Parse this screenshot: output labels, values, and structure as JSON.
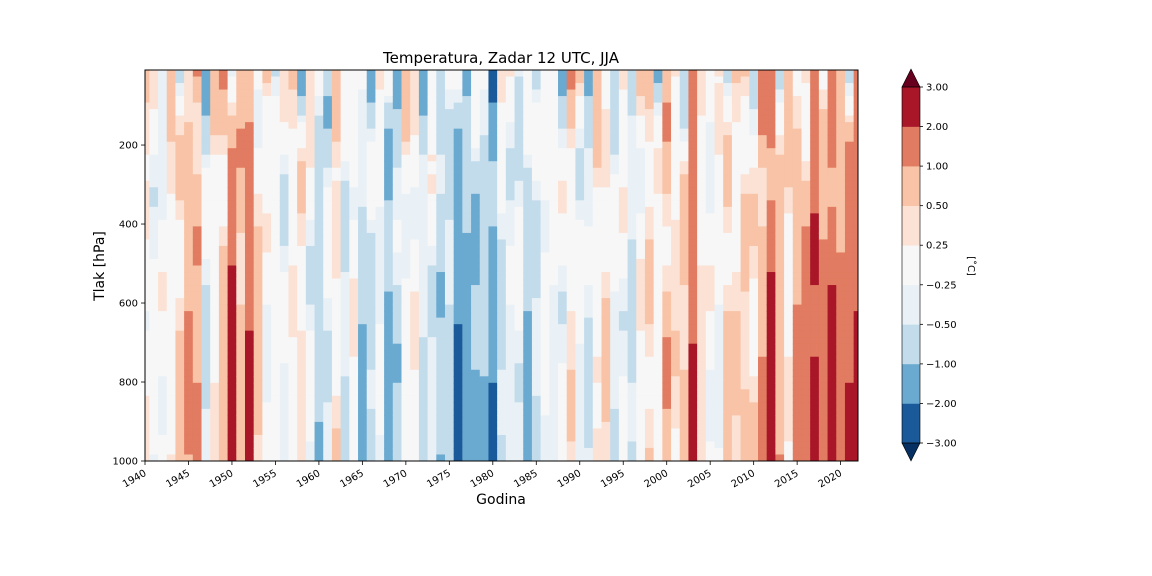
{
  "chart_data": {
    "type": "heatmap",
    "title": "Temperatura, Zadar 12 UTC, JJA",
    "xlabel": "Godina",
    "ylabel": "Tlak [hPa]",
    "x_range": [
      1940,
      2022
    ],
    "y_range": [
      1000,
      10
    ],
    "y_inverted": true,
    "x_ticks": [
      1940,
      1945,
      1950,
      1955,
      1960,
      1965,
      1970,
      1975,
      1980,
      1985,
      1990,
      1995,
      2000,
      2005,
      2010,
      2015,
      2020
    ],
    "x_tick_labels": [
      "1940",
      "1945",
      "1950",
      "1955",
      "1960",
      "1965",
      "1970",
      "1975",
      "1980",
      "1985",
      "1990",
      "1995",
      "2000",
      "2005",
      "2010",
      "2015",
      "2020"
    ],
    "y_ticks": [
      200,
      400,
      600,
      800,
      1000
    ],
    "y_tick_labels": [
      "200",
      "400",
      "600",
      "800",
      "1000"
    ],
    "colorbar": {
      "label": "[˚C]",
      "levels": [
        -3.0,
        -2.0,
        -1.0,
        -0.5,
        -0.25,
        0.25,
        0.5,
        1.0,
        2.0,
        3.0
      ],
      "level_labels": [
        "−3.00",
        "−2.00",
        "−1.00",
        "−0.50",
        "−0.25",
        "0.25",
        "0.50",
        "1.00",
        "2.00",
        "3.00"
      ],
      "colors": [
        "#1b5a9a",
        "#6baad0",
        "#c3dcec",
        "#e9f1f6",
        "#f7f7f7",
        "#fbe2d4",
        "#f8c3a6",
        "#e17b61",
        "#a81628"
      ],
      "under_color": "#053061",
      "over_color": "#67001f",
      "extend": "both"
    },
    "surface_anomaly_by_year": [
      {
        "year": 1940,
        "t": 0.1
      },
      {
        "year": 1941,
        "t": -0.3
      },
      {
        "year": 1942,
        "t": -0.1
      },
      {
        "year": 1943,
        "t": 0.2
      },
      {
        "year": 1944,
        "t": 0.6
      },
      {
        "year": 1945,
        "t": 1.2
      },
      {
        "year": 1946,
        "t": 1.1
      },
      {
        "year": 1947,
        "t": -0.6
      },
      {
        "year": 1948,
        "t": 0.2
      },
      {
        "year": 1949,
        "t": 0.8
      },
      {
        "year": 1950,
        "t": 2.5
      },
      {
        "year": 1951,
        "t": 0.9
      },
      {
        "year": 1952,
        "t": 2.2
      },
      {
        "year": 1953,
        "t": 0.6
      },
      {
        "year": 1954,
        "t": -0.2
      },
      {
        "year": 1955,
        "t": 0.0
      },
      {
        "year": 1956,
        "t": -0.4
      },
      {
        "year": 1957,
        "t": 0.1
      },
      {
        "year": 1958,
        "t": 0.4
      },
      {
        "year": 1959,
        "t": -0.3
      },
      {
        "year": 1960,
        "t": -1.0
      },
      {
        "year": 1961,
        "t": -0.4
      },
      {
        "year": 1962,
        "t": 0.3
      },
      {
        "year": 1963,
        "t": -0.6
      },
      {
        "year": 1964,
        "t": 0.1
      },
      {
        "year": 1965,
        "t": -1.2
      },
      {
        "year": 1966,
        "t": -0.7
      },
      {
        "year": 1967,
        "t": -0.3
      },
      {
        "year": 1968,
        "t": -1.6
      },
      {
        "year": 1969,
        "t": -0.8
      },
      {
        "year": 1970,
        "t": -0.2
      },
      {
        "year": 1971,
        "t": 0.1
      },
      {
        "year": 1972,
        "t": -0.7
      },
      {
        "year": 1973,
        "t": -0.4
      },
      {
        "year": 1974,
        "t": -1.0
      },
      {
        "year": 1975,
        "t": -0.8
      },
      {
        "year": 1976,
        "t": -2.3
      },
      {
        "year": 1977,
        "t": -1.4
      },
      {
        "year": 1978,
        "t": -1.3
      },
      {
        "year": 1979,
        "t": -1.1
      },
      {
        "year": 1980,
        "t": -2.1
      },
      {
        "year": 1981,
        "t": -0.7
      },
      {
        "year": 1982,
        "t": -0.4
      },
      {
        "year": 1983,
        "t": -0.3
      },
      {
        "year": 1984,
        "t": -1.2
      },
      {
        "year": 1985,
        "t": -0.6
      },
      {
        "year": 1986,
        "t": -0.1
      },
      {
        "year": 1987,
        "t": -0.3
      },
      {
        "year": 1988,
        "t": -0.2
      },
      {
        "year": 1989,
        "t": 0.4
      },
      {
        "year": 1990,
        "t": -0.3
      },
      {
        "year": 1991,
        "t": -0.6
      },
      {
        "year": 1992,
        "t": 0.2
      },
      {
        "year": 1993,
        "t": 0.6
      },
      {
        "year": 1994,
        "t": -0.4
      },
      {
        "year": 1995,
        "t": -0.2
      },
      {
        "year": 1996,
        "t": -0.7
      },
      {
        "year": 1997,
        "t": 0.1
      },
      {
        "year": 1998,
        "t": 0.5
      },
      {
        "year": 1999,
        "t": 0.1
      },
      {
        "year": 2000,
        "t": 0.9
      },
      {
        "year": 2001,
        "t": 0.4
      },
      {
        "year": 2002,
        "t": 0.7
      },
      {
        "year": 2003,
        "t": 2.6
      },
      {
        "year": 2004,
        "t": 0.3
      },
      {
        "year": 2005,
        "t": -0.1
      },
      {
        "year": 2006,
        "t": -0.3
      },
      {
        "year": 2007,
        "t": 0.8
      },
      {
        "year": 2008,
        "t": 0.5
      },
      {
        "year": 2009,
        "t": 0.6
      },
      {
        "year": 2010,
        "t": 0.4
      },
      {
        "year": 2011,
        "t": 1.1
      },
      {
        "year": 2012,
        "t": 2.4
      },
      {
        "year": 2013,
        "t": 1.0
      },
      {
        "year": 2014,
        "t": 0.2
      },
      {
        "year": 2015,
        "t": 1.4
      },
      {
        "year": 2016,
        "t": 1.2
      },
      {
        "year": 2017,
        "t": 2.6
      },
      {
        "year": 2018,
        "t": 1.6
      },
      {
        "year": 2019,
        "t": 2.4
      },
      {
        "year": 2020,
        "t": 1.3
      },
      {
        "year": 2021,
        "t": 2.1
      },
      {
        "year": 2022,
        "t": 2.7
      }
    ]
  }
}
